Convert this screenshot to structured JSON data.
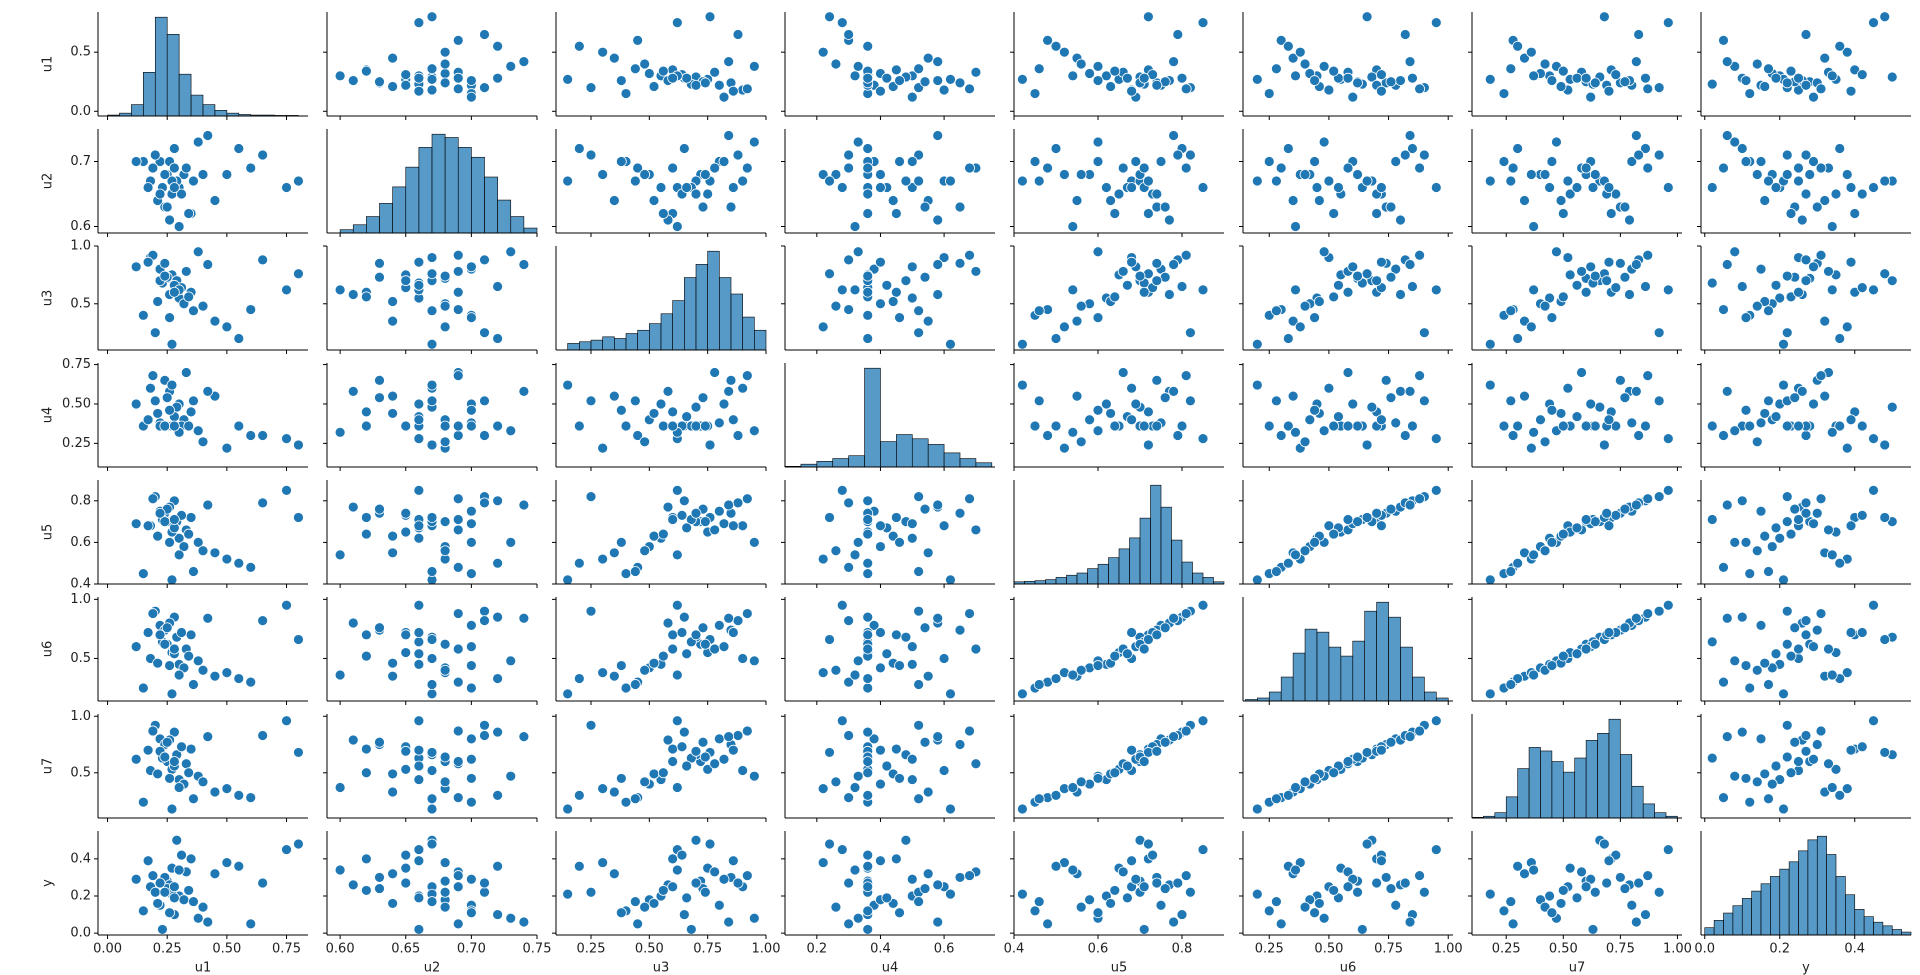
{
  "chart_data": {
    "type": "pairplot",
    "color": "#1f77b4",
    "variables": [
      {
        "name": "u1",
        "lim": [
          -0.04,
          0.84
        ],
        "yticks": [
          {
            "value": 0,
            "label": "0.0"
          },
          0.5
        ],
        "xticks": [
          {
            "value": 0,
            "label": "0.00"
          },
          0.25,
          {
            "value": 0.5,
            "label": "0.50"
          },
          0.75
        ],
        "bins": [
          0.0,
          0.05,
          0.1,
          0.15,
          0.2,
          0.25,
          0.3,
          0.35,
          0.4,
          0.45,
          0.5,
          0.55,
          0.6,
          0.7,
          0.8
        ],
        "counts": [
          5,
          15,
          60,
          230,
          520,
          430,
          220,
          110,
          60,
          30,
          15,
          8,
          5,
          3
        ]
      },
      {
        "name": "u2",
        "lim": [
          0.59,
          0.75
        ],
        "yticks": [
          0.6,
          0.7
        ],
        "xticks": [
          {
            "value": 0.6,
            "label": "0.60"
          },
          0.65,
          {
            "value": 0.7,
            "label": "0.70"
          },
          0.75
        ],
        "bins": [
          0.6,
          0.61,
          0.62,
          0.63,
          0.64,
          0.65,
          0.66,
          0.67,
          0.68,
          0.69,
          0.7,
          0.71,
          0.72,
          0.73,
          0.74,
          0.75
        ],
        "counts": [
          10,
          25,
          50,
          90,
          140,
          200,
          260,
          300,
          290,
          260,
          230,
          170,
          100,
          50,
          15
        ]
      },
      {
        "name": "u3",
        "lim": [
          0.1,
          1.0
        ],
        "yticks": [
          0.5,
          {
            "value": 1,
            "label": "1.0"
          }
        ],
        "xticks": [
          0.25,
          {
            "value": 0.5,
            "label": "0.50"
          },
          0.75,
          {
            "value": 1,
            "label": "1.00"
          }
        ],
        "bins": [
          0.15,
          0.2,
          0.25,
          0.3,
          0.35,
          0.4,
          0.45,
          0.5,
          0.55,
          0.6,
          0.65,
          0.7,
          0.75,
          0.8,
          0.85,
          0.9,
          0.95,
          1.0
        ],
        "counts": [
          20,
          25,
          30,
          40,
          35,
          50,
          60,
          80,
          110,
          150,
          220,
          260,
          300,
          220,
          170,
          100,
          60
        ]
      },
      {
        "name": "u4",
        "lim": [
          0.1,
          0.76
        ],
        "yticks": [
          0.25,
          {
            "value": 0.5,
            "label": "0.50"
          },
          0.75
        ],
        "xticks": [
          0.2,
          0.4,
          0.6
        ],
        "bins": [
          0.1,
          0.15,
          0.2,
          0.25,
          0.3,
          0.35,
          0.4,
          0.45,
          0.5,
          0.55,
          0.6,
          0.65,
          0.7,
          0.75
        ],
        "counts": [
          5,
          20,
          40,
          60,
          80,
          700,
          180,
          230,
          200,
          160,
          100,
          60,
          30
        ]
      },
      {
        "name": "u5",
        "lim": [
          0.4,
          0.9
        ],
        "yticks": [
          0.4,
          0.6,
          0.8
        ],
        "xticks": [
          0.4,
          0.6,
          0.8
        ],
        "bins": [
          0.4,
          0.425,
          0.45,
          0.475,
          0.5,
          0.525,
          0.55,
          0.575,
          0.6,
          0.625,
          0.65,
          0.675,
          0.7,
          0.725,
          0.75,
          0.775,
          0.8,
          0.825,
          0.85,
          0.875,
          0.9
        ],
        "counts": [
          10,
          12,
          15,
          20,
          30,
          40,
          50,
          70,
          90,
          120,
          160,
          210,
          300,
          450,
          350,
          200,
          100,
          50,
          30,
          10
        ]
      },
      {
        "name": "u6",
        "lim": [
          0.14,
          1.02
        ],
        "yticks": [
          0.5,
          {
            "value": 1,
            "label": "1.0"
          }
        ],
        "xticks": [
          0.25,
          {
            "value": 0.5,
            "label": "0.50"
          },
          0.75,
          {
            "value": 1,
            "label": "1.00"
          }
        ],
        "bins": [
          0.15,
          0.2,
          0.25,
          0.3,
          0.35,
          0.4,
          0.45,
          0.5,
          0.55,
          0.6,
          0.65,
          0.7,
          0.75,
          0.8,
          0.85,
          0.9,
          0.95,
          1.0
        ],
        "counts": [
          5,
          10,
          30,
          80,
          160,
          240,
          230,
          180,
          150,
          200,
          300,
          330,
          280,
          180,
          80,
          30,
          10
        ]
      },
      {
        "name": "u7",
        "lim": [
          0.1,
          1.02
        ],
        "yticks": [
          0.5,
          {
            "value": 1,
            "label": "1.0"
          }
        ],
        "xticks": [
          0.25,
          {
            "value": 0.5,
            "label": "0.50"
          },
          0.75,
          {
            "value": 1,
            "label": "1.00"
          }
        ],
        "bins": [
          0.1,
          0.15,
          0.2,
          0.25,
          0.3,
          0.35,
          0.4,
          0.45,
          0.5,
          0.55,
          0.6,
          0.65,
          0.7,
          0.75,
          0.8,
          0.85,
          0.9,
          0.95,
          1.0
        ],
        "counts": [
          2,
          5,
          15,
          60,
          140,
          200,
          190,
          160,
          130,
          170,
          220,
          240,
          280,
          180,
          90,
          40,
          15,
          5
        ]
      },
      {
        "name": "y",
        "lim": [
          -0.01,
          0.55
        ],
        "yticks": [
          {
            "value": 0,
            "label": "0.0"
          },
          0.2,
          0.4
        ],
        "xticks": [
          {
            "value": 0,
            "label": "0.0"
          },
          0.2,
          0.4
        ],
        "bins": [
          0.0,
          0.025,
          0.05,
          0.075,
          0.1,
          0.125,
          0.15,
          0.175,
          0.2,
          0.225,
          0.25,
          0.275,
          0.3,
          0.325,
          0.35,
          0.375,
          0.4,
          0.425,
          0.45,
          0.475,
          0.5,
          0.525,
          0.55
        ],
        "counts": [
          20,
          40,
          60,
          80,
          100,
          120,
          140,
          160,
          180,
          200,
          230,
          260,
          270,
          220,
          160,
          110,
          70,
          50,
          35,
          25,
          15,
          8
        ]
      }
    ],
    "rows": [
      [
        0.25,
        0.68,
        0.72,
        0.36,
        0.7,
        0.62,
        0.6,
        0.28
      ],
      [
        0.3,
        0.66,
        0.55,
        0.5,
        0.62,
        0.45,
        0.44,
        0.2
      ],
      [
        0.22,
        0.7,
        0.8,
        0.38,
        0.75,
        0.78,
        0.8,
        0.15
      ],
      [
        0.45,
        0.64,
        0.35,
        0.55,
        0.55,
        0.35,
        0.33,
        0.32
      ],
      [
        0.28,
        0.72,
        0.65,
        0.36,
        0.8,
        0.85,
        0.86,
        0.1
      ],
      [
        0.18,
        0.67,
        0.9,
        0.6,
        0.68,
        0.5,
        0.52,
        0.25
      ],
      [
        0.35,
        0.62,
        0.6,
        0.45,
        0.72,
        0.7,
        0.71,
        0.4
      ],
      [
        0.6,
        0.69,
        0.45,
        0.3,
        0.48,
        0.3,
        0.28,
        0.05
      ],
      [
        0.27,
        0.65,
        0.75,
        0.36,
        0.65,
        0.55,
        0.53,
        0.35
      ],
      [
        0.2,
        0.71,
        0.25,
        0.52,
        0.82,
        0.9,
        0.92,
        0.22
      ],
      [
        0.32,
        0.68,
        0.5,
        0.4,
        0.58,
        0.42,
        0.4,
        0.18
      ],
      [
        0.24,
        0.63,
        0.85,
        0.65,
        0.74,
        0.74,
        0.75,
        0.3
      ],
      [
        0.75,
        0.66,
        0.62,
        0.28,
        0.85,
        0.95,
        0.96,
        0.45
      ],
      [
        0.15,
        0.7,
        0.4,
        0.36,
        0.45,
        0.25,
        0.24,
        0.12
      ],
      [
        0.29,
        0.67,
        0.7,
        0.48,
        0.7,
        0.68,
        0.66,
        0.5
      ],
      [
        0.38,
        0.73,
        0.95,
        0.33,
        0.6,
        0.48,
        0.47,
        0.08
      ],
      [
        0.26,
        0.61,
        0.58,
        0.58,
        0.77,
        0.8,
        0.79,
        0.26
      ],
      [
        0.5,
        0.68,
        0.3,
        0.22,
        0.52,
        0.38,
        0.36,
        0.38
      ],
      [
        0.23,
        0.66,
        0.68,
        0.36,
        0.71,
        0.64,
        0.63,
        0.02
      ],
      [
        0.33,
        0.69,
        0.78,
        0.7,
        0.66,
        0.58,
        0.58,
        0.33
      ],
      [
        0.21,
        0.64,
        0.52,
        0.44,
        0.63,
        0.46,
        0.49,
        0.16
      ],
      [
        0.65,
        0.71,
        0.88,
        0.3,
        0.79,
        0.82,
        0.83,
        0.27
      ],
      [
        0.27,
        0.67,
        0.15,
        0.62,
        0.42,
        0.2,
        0.18,
        0.21
      ],
      [
        0.31,
        0.65,
        0.64,
        0.36,
        0.73,
        0.72,
        0.73,
        0.42
      ],
      [
        0.12,
        0.7,
        0.82,
        0.5,
        0.69,
        0.6,
        0.62,
        0.29
      ],
      [
        0.4,
        0.68,
        0.48,
        0.26,
        0.56,
        0.4,
        0.42,
        0.14
      ],
      [
        0.25,
        0.63,
        0.73,
        0.54,
        0.76,
        0.76,
        0.77,
        0.24
      ],
      [
        0.55,
        0.72,
        0.2,
        0.36,
        0.5,
        0.33,
        0.3,
        0.36
      ],
      [
        0.28,
        0.66,
        0.66,
        0.42,
        0.67,
        0.54,
        0.56,
        0.19
      ],
      [
        0.19,
        0.69,
        0.92,
        0.68,
        0.81,
        0.88,
        0.87,
        0.31
      ],
      [
        0.34,
        0.62,
        0.56,
        0.36,
        0.64,
        0.52,
        0.5,
        0.23
      ],
      [
        0.8,
        0.67,
        0.76,
        0.24,
        0.72,
        0.66,
        0.68,
        0.48
      ],
      [
        0.26,
        0.7,
        0.38,
        0.46,
        0.6,
        0.44,
        0.45,
        0.11
      ],
      [
        0.22,
        0.65,
        0.7,
        0.36,
        0.74,
        0.7,
        0.69,
        0.27
      ],
      [
        0.42,
        0.74,
        0.84,
        0.58,
        0.78,
        0.84,
        0.82,
        0.06
      ],
      [
        0.3,
        0.6,
        0.62,
        0.32,
        0.54,
        0.36,
        0.37,
        0.34
      ],
      [
        0.24,
        0.68,
        0.74,
        0.36,
        0.7,
        0.62,
        0.64,
        0.22
      ],
      [
        0.36,
        0.67,
        0.44,
        0.52,
        0.46,
        0.28,
        0.27,
        0.17
      ],
      [
        0.17,
        0.66,
        0.86,
        0.4,
        0.68,
        0.72,
        0.7,
        0.39
      ],
      [
        0.28,
        0.69,
        0.6,
        0.36,
        0.71,
        0.58,
        0.6,
        0.25
      ]
    ]
  }
}
